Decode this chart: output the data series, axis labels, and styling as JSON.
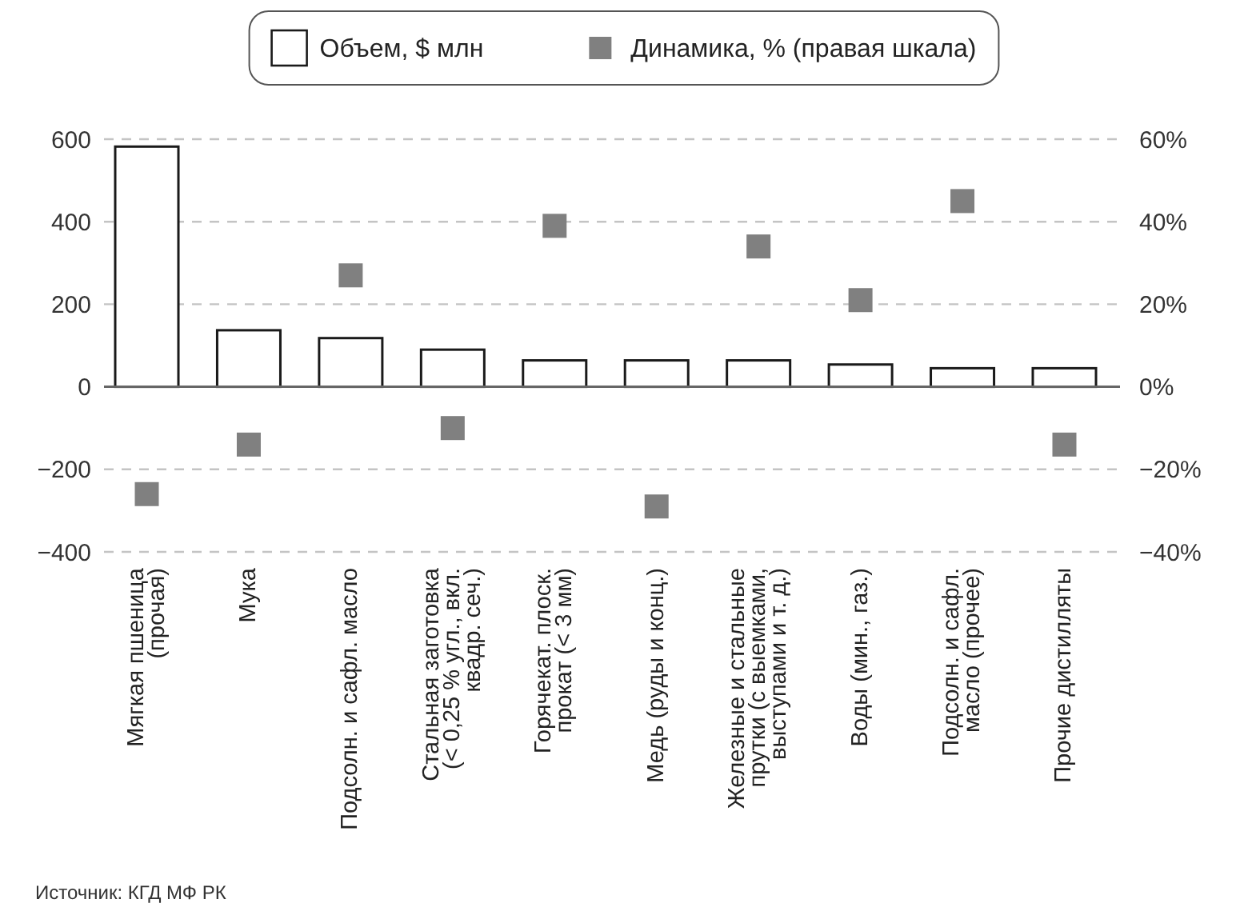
{
  "chart_data": {
    "type": "bar",
    "categories": [
      "Мягкая пшеница\n(прочая)",
      "Мука",
      "Подсолн. и сафл. масло",
      "Стальная заготовка\n(< 0,25 % угл., вкл.\nквадр. сеч.)",
      "Горячекат. плоск.\nпрокат (< 3 мм)",
      "Медь (руды и конц.)",
      "Железные и стальные\nпрутки (с выемками,\nвыступами и т. д.)",
      "Воды (мин., газ.)",
      "Подсолн. и сафл.\nмасло (прочее)",
      "Прочие дистилляты"
    ],
    "series": [
      {
        "name": "Объем, $ млн",
        "color": "#ffffff",
        "values": [
          582,
          137,
          118,
          90,
          64,
          64,
          64,
          54,
          45,
          45
        ]
      },
      {
        "name": "Динамика, % (правая шкала)",
        "type": "scatter",
        "axis": "y2",
        "color": "#808080",
        "values": [
          -26,
          -14,
          27,
          -10,
          39,
          -29,
          34,
          21,
          45,
          -14
        ]
      }
    ],
    "ylim": [
      -400,
      600
    ],
    "yticks": [
      {
        "value": -400,
        "label": "−400"
      },
      {
        "value": -200,
        "label": "−200"
      },
      0,
      200,
      400,
      600
    ],
    "y2lim": [
      -40,
      60
    ],
    "y2ticks": [
      {
        "value": -40,
        "label": "−40%"
      },
      {
        "value": -20,
        "label": "−20%"
      },
      {
        "value": 0,
        "label": "0%"
      },
      {
        "value": 20,
        "label": "20%"
      },
      {
        "value": 40,
        "label": "40%"
      },
      {
        "value": 60,
        "label": "60%"
      }
    ],
    "grid": "y",
    "legend": "top",
    "marker": "square",
    "annotations": [
      "Источник: КГД МФ РК"
    ]
  }
}
